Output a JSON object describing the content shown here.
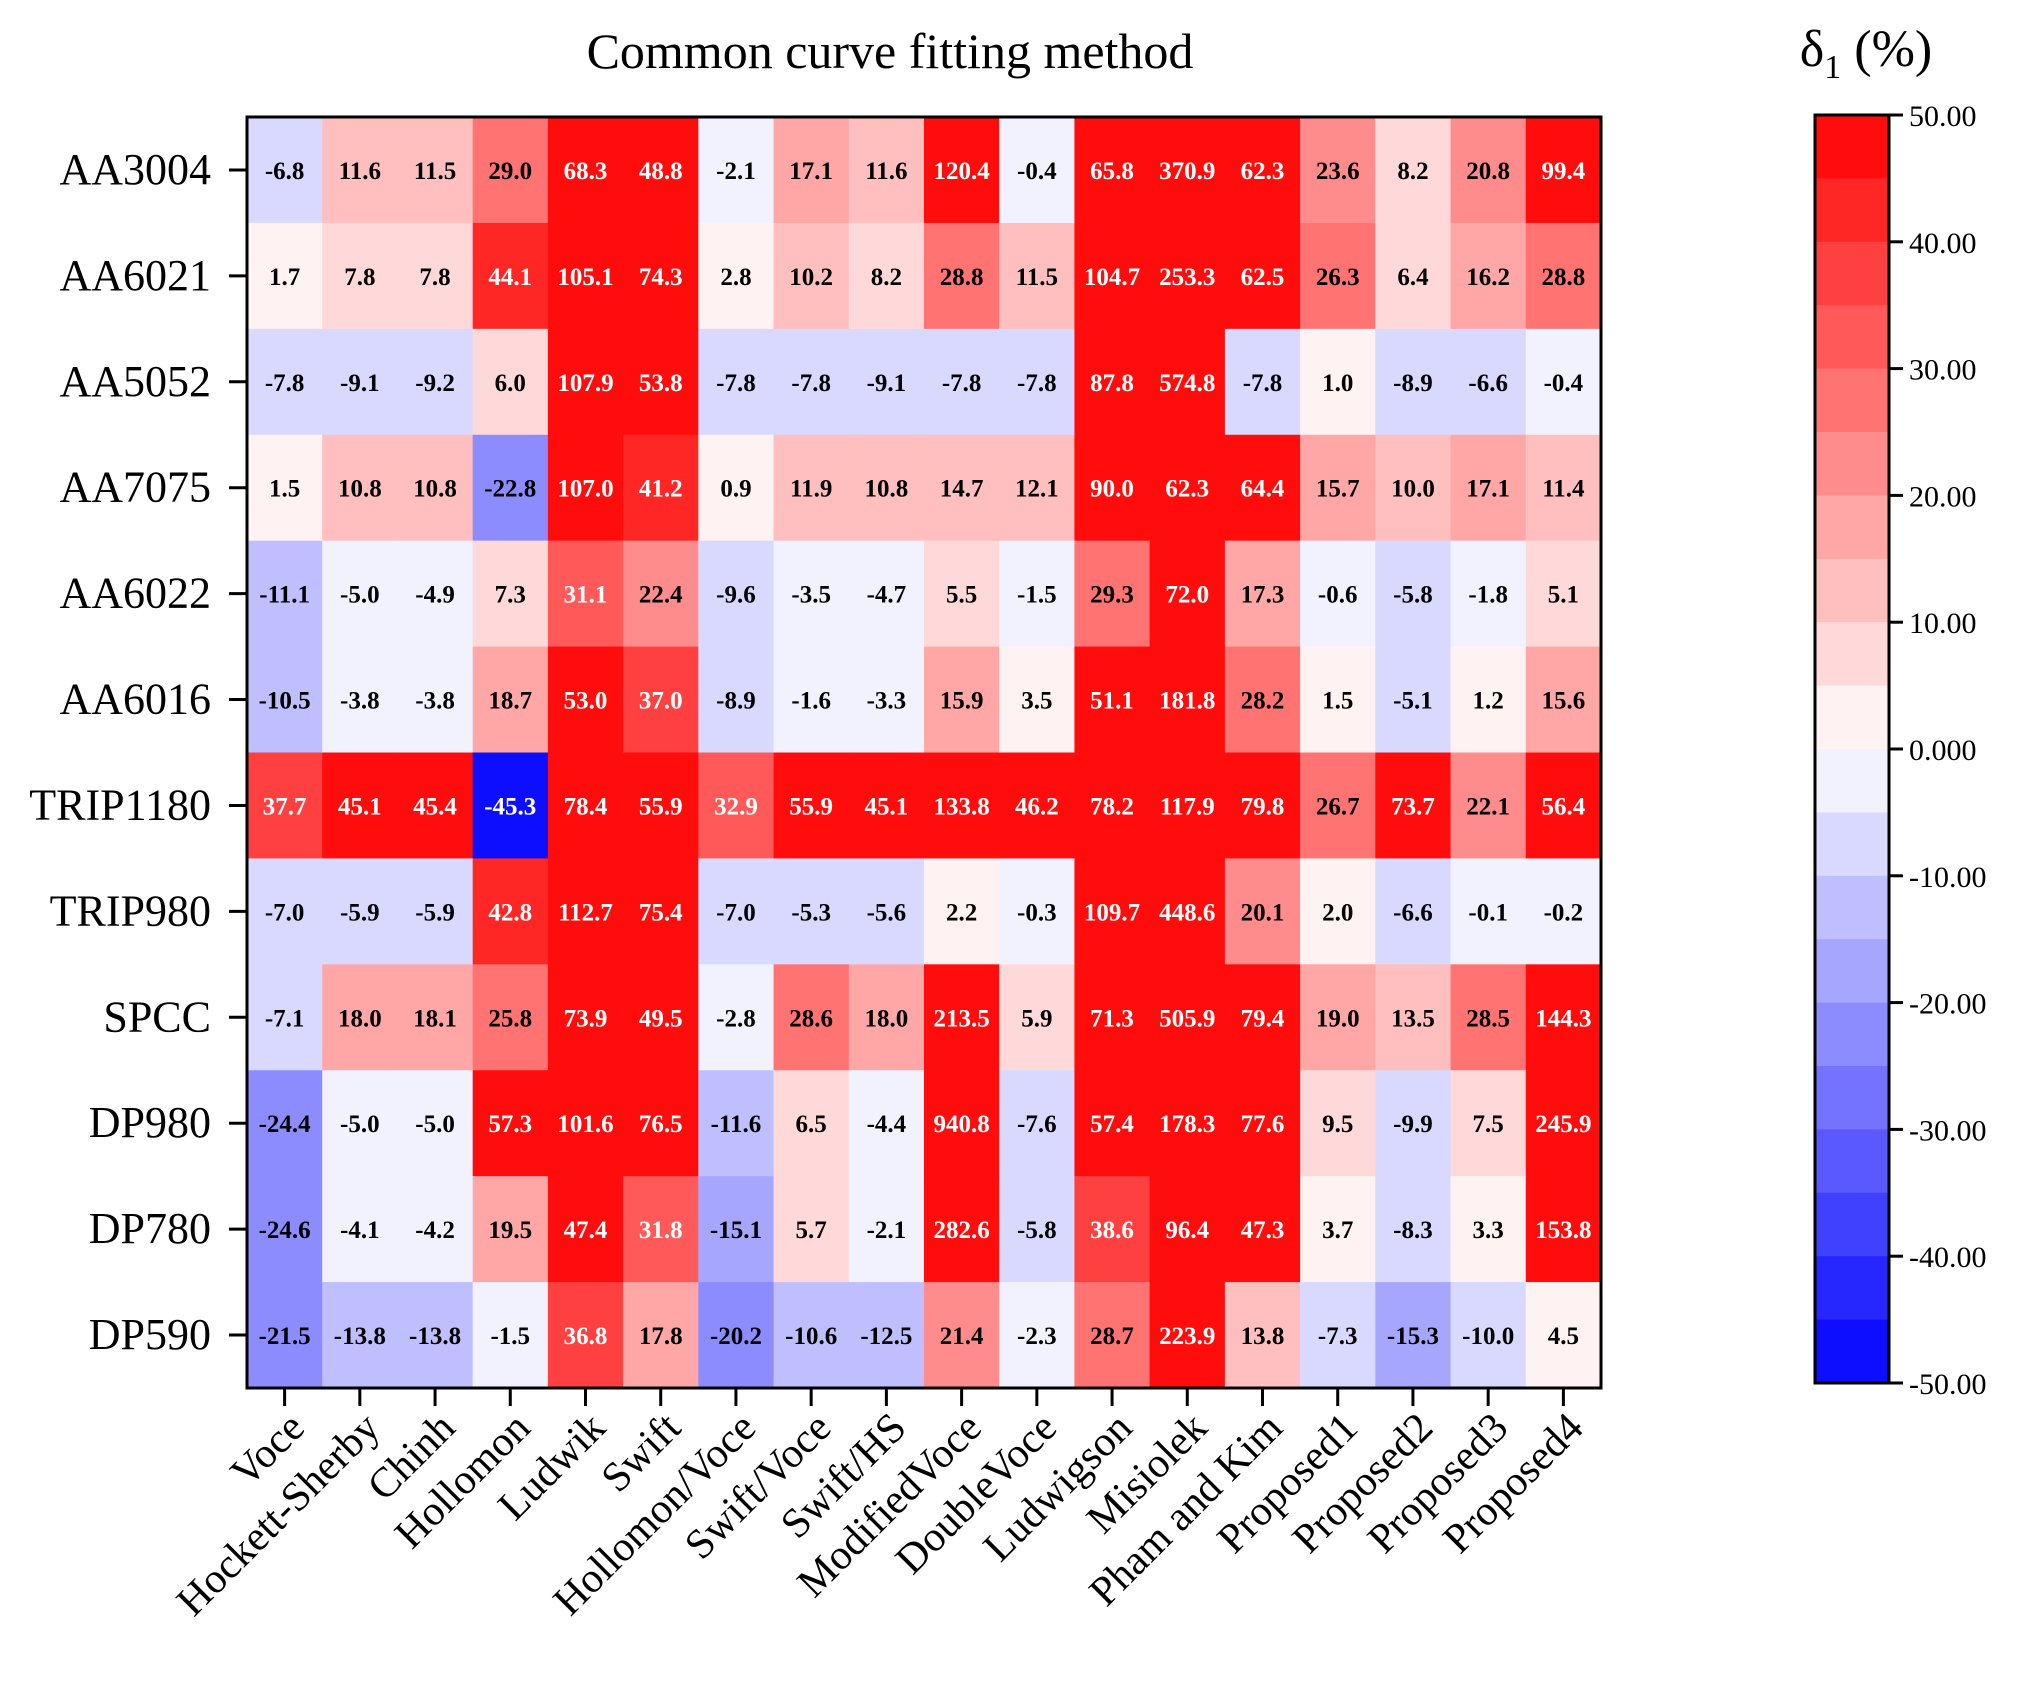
{
  "chart_data": {
    "type": "heatmap",
    "title": "Common curve fitting method",
    "colorbar_label": "δ₁ (%)",
    "colorbar_label_main": "δ",
    "colorbar_label_sub": "1",
    "colorbar_label_unit": " (%)",
    "colorbar_range": [
      -50,
      50
    ],
    "colorbar_step": 5,
    "colorbar_ticks": [
      "50.00",
      "40.00",
      "30.00",
      "20.00",
      "10.00",
      "0.000",
      "-10.00",
      "-20.00",
      "-30.00",
      "-40.00",
      "-50.00"
    ],
    "colorbar_tick_values": [
      50,
      40,
      30,
      20,
      10,
      0,
      -10,
      -20,
      -30,
      -40,
      -50
    ],
    "colors": {
      "high": "#ff0000",
      "mid": "#ffffff",
      "low": "#0000ff"
    },
    "rows": [
      "AA3004",
      "AA6021",
      "AA5052",
      "AA7075",
      "AA6022",
      "AA6016",
      "TRIP1180",
      "TRIP980",
      "SPCC",
      "DP980",
      "DP780",
      "DP590"
    ],
    "columns": [
      "Voce",
      "Hockett-Sherby",
      "Chinh",
      "Hollomon",
      "Ludwik",
      "Swift",
      "Hollomon/Voce",
      "Swift/Voce",
      "Swift/HS",
      "ModifiedVoce",
      "DoubleVoce",
      "Ludwigson",
      "Misiolek",
      "Pham and Kim",
      "Proposed1",
      "Proposed2",
      "Proposed3",
      "Proposed4"
    ],
    "values": [
      [
        -6.8,
        11.6,
        11.5,
        29.0,
        68.3,
        48.8,
        -2.1,
        17.1,
        11.6,
        120.4,
        -0.4,
        65.8,
        370.9,
        62.3,
        23.6,
        8.2,
        20.8,
        99.4
      ],
      [
        1.7,
        7.8,
        7.8,
        44.1,
        105.1,
        74.3,
        2.8,
        10.2,
        8.2,
        28.8,
        11.5,
        104.7,
        253.3,
        62.5,
        26.3,
        6.4,
        16.2,
        28.8
      ],
      [
        -7.8,
        -9.1,
        -9.2,
        6.0,
        107.9,
        53.8,
        -7.8,
        -7.8,
        -9.1,
        -7.8,
        -7.8,
        87.8,
        574.8,
        -7.8,
        1.0,
        -8.9,
        -6.6,
        -0.4
      ],
      [
        1.5,
        10.8,
        10.8,
        -22.8,
        107.0,
        41.2,
        0.9,
        11.9,
        10.8,
        14.7,
        12.1,
        90.0,
        62.3,
        64.4,
        15.7,
        10.0,
        17.1,
        11.4
      ],
      [
        -11.1,
        -5.0,
        -4.9,
        7.3,
        31.1,
        22.4,
        -9.6,
        -3.5,
        -4.7,
        5.5,
        -1.5,
        29.3,
        72.0,
        17.3,
        -0.6,
        -5.8,
        -1.8,
        5.1
      ],
      [
        -10.5,
        -3.8,
        -3.8,
        18.7,
        53.0,
        37.0,
        -8.9,
        -1.6,
        -3.3,
        15.9,
        3.5,
        51.1,
        181.8,
        28.2,
        1.5,
        -5.1,
        1.2,
        15.6
      ],
      [
        37.7,
        45.1,
        45.4,
        -45.3,
        78.4,
        55.9,
        32.9,
        55.9,
        45.1,
        133.8,
        46.2,
        78.2,
        117.9,
        79.8,
        26.7,
        73.7,
        22.1,
        56.4
      ],
      [
        -7.0,
        -5.9,
        -5.9,
        42.8,
        112.7,
        75.4,
        -7.0,
        -5.3,
        -5.6,
        2.2,
        -0.3,
        109.7,
        448.6,
        20.1,
        2.0,
        -6.6,
        -0.1,
        -0.2
      ],
      [
        -7.1,
        18.0,
        18.1,
        25.8,
        73.9,
        49.5,
        -2.8,
        28.6,
        18.0,
        213.5,
        5.9,
        71.3,
        505.9,
        79.4,
        19.0,
        13.5,
        28.5,
        144.3
      ],
      [
        -24.4,
        -5.0,
        -5.0,
        57.3,
        101.6,
        76.5,
        -11.6,
        6.5,
        -4.4,
        940.8,
        -7.6,
        57.4,
        178.3,
        77.6,
        9.5,
        -9.9,
        7.5,
        245.9
      ],
      [
        -24.6,
        -4.1,
        -4.2,
        19.5,
        47.4,
        31.8,
        -15.1,
        5.7,
        -2.1,
        282.6,
        -5.8,
        38.6,
        96.4,
        47.3,
        3.7,
        -8.3,
        3.3,
        153.8
      ],
      [
        -21.5,
        -13.8,
        -13.8,
        -1.5,
        36.8,
        17.8,
        -20.2,
        -10.6,
        -12.5,
        21.4,
        -2.3,
        28.7,
        223.9,
        13.8,
        -7.3,
        -15.3,
        -10.0,
        4.5
      ]
    ]
  }
}
